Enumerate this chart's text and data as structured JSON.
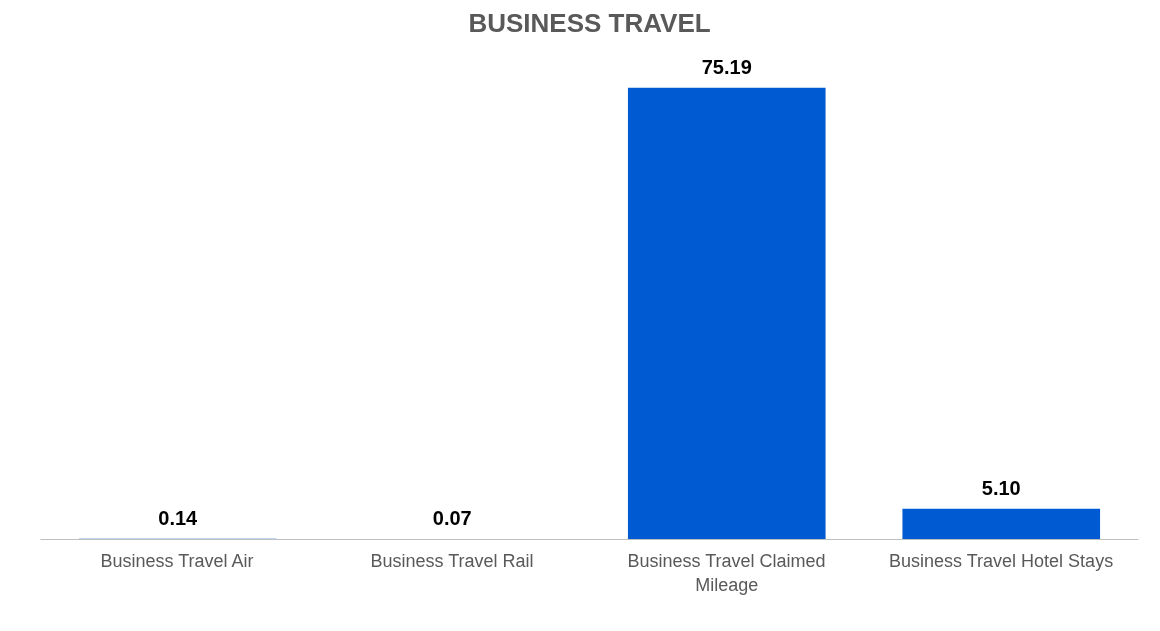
{
  "chart_data": {
    "type": "bar",
    "title": "BUSINESS TRAVEL",
    "categories": [
      "Business Travel Air",
      "Business Travel Rail",
      "Business Travel Claimed Mileage",
      "Business Travel Hotel Stays"
    ],
    "values": [
      0.14,
      0.07,
      75.19,
      5.1
    ],
    "value_labels": [
      "0.14",
      "0.07",
      "75.19",
      "5.10"
    ],
    "color": "#005bd3",
    "grid": false
  }
}
